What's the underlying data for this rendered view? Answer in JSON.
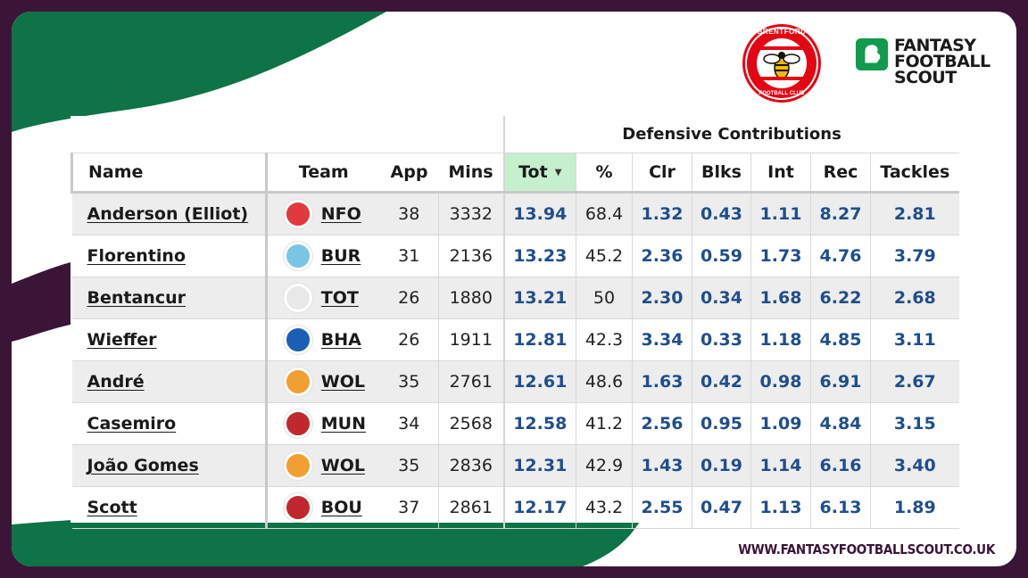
{
  "branding": {
    "club_logo": "brentford-crest-icon",
    "club_logo_text_top": "BRENTFORD",
    "club_logo_text_bottom": "FOOTBALL CLUB",
    "site_logo_lines": [
      "FANTASY",
      "FOOTBALL",
      "SCOUT"
    ],
    "site_url": "WWW.FANTASYFOOTBALLSCOUT.CO.UK",
    "colors": {
      "frame": "#3a1538",
      "green": "#0e7347",
      "brentford_red": "#e30613",
      "ffs_green": "#119a4e"
    }
  },
  "table": {
    "group_header": "Defensive Contributions",
    "columns": {
      "name": "Name",
      "team": "Team",
      "app": "App",
      "mins": "Mins",
      "tot": "Tot",
      "pct": "%",
      "clr": "Clr",
      "blks": "Blks",
      "int": "Int",
      "rec": "Rec",
      "tackles": "Tackles"
    },
    "sort_column": "Tot",
    "sort_icon": "sort-desc-icon",
    "rows": [
      {
        "name": "Anderson (Elliot)",
        "team": "NFO",
        "badge": "#e03a3e",
        "app": "38",
        "mins": "3332",
        "tot": "13.94",
        "pct": "68.4",
        "clr": "1.32",
        "blks": "0.43",
        "int": "1.11",
        "rec": "8.27",
        "tackles": "2.81"
      },
      {
        "name": "Florentino",
        "team": "BUR",
        "badge": "#7ac4e4",
        "app": "31",
        "mins": "2136",
        "tot": "13.23",
        "pct": "45.2",
        "clr": "2.36",
        "blks": "0.59",
        "int": "1.73",
        "rec": "4.76",
        "tackles": "3.79"
      },
      {
        "name": "Bentancur",
        "team": "TOT",
        "badge": "#e8e8e8",
        "app": "26",
        "mins": "1880",
        "tot": "13.21",
        "pct": "50",
        "clr": "2.30",
        "blks": "0.34",
        "int": "1.68",
        "rec": "6.22",
        "tackles": "2.68"
      },
      {
        "name": "Wieffer",
        "team": "BHA",
        "badge": "#1a5fb4",
        "app": "26",
        "mins": "1911",
        "tot": "12.81",
        "pct": "42.3",
        "clr": "3.34",
        "blks": "0.33",
        "int": "1.18",
        "rec": "4.85",
        "tackles": "3.11"
      },
      {
        "name": "André",
        "team": "WOL",
        "badge": "#f0a030",
        "app": "35",
        "mins": "2761",
        "tot": "12.61",
        "pct": "48.6",
        "clr": "1.63",
        "blks": "0.42",
        "int": "0.98",
        "rec": "6.91",
        "tackles": "2.67"
      },
      {
        "name": "Casemiro",
        "team": "MUN",
        "badge": "#c0282d",
        "app": "34",
        "mins": "2568",
        "tot": "12.58",
        "pct": "41.2",
        "clr": "2.56",
        "blks": "0.95",
        "int": "1.09",
        "rec": "4.84",
        "tackles": "3.15"
      },
      {
        "name": "João Gomes",
        "team": "WOL",
        "badge": "#f0a030",
        "app": "35",
        "mins": "2836",
        "tot": "12.31",
        "pct": "42.9",
        "clr": "1.43",
        "blks": "0.19",
        "int": "1.14",
        "rec": "6.16",
        "tackles": "3.40"
      },
      {
        "name": "Scott",
        "team": "BOU",
        "badge": "#c0282d",
        "app": "37",
        "mins": "2861",
        "tot": "12.17",
        "pct": "43.2",
        "clr": "2.55",
        "blks": "0.47",
        "int": "1.13",
        "rec": "6.13",
        "tackles": "1.89"
      }
    ]
  }
}
